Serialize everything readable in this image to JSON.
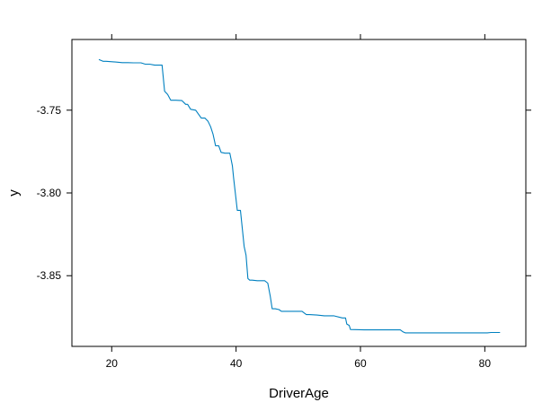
{
  "chart_data": {
    "type": "line",
    "title": "",
    "xlabel": "DriverAge",
    "ylabel": "y",
    "xlim": [
      13.6,
      86.6
    ],
    "ylim": [
      -3.8927,
      -3.7073
    ],
    "xticks": [
      20,
      40,
      60,
      80
    ],
    "xtick_labels": [
      "20",
      "40",
      "60",
      "80"
    ],
    "yticks": [
      -3.75,
      -3.8,
      -3.85
    ],
    "ytick_labels": [
      "-3.75",
      "-3.80",
      "-3.85"
    ],
    "grid": false,
    "legend": "none",
    "line_color": "#0080c0",
    "series": [
      {
        "x": [
          18,
          18.6,
          19.1,
          20.3,
          21.7,
          22.6,
          23.5,
          24.7,
          25.4,
          26.1,
          26.9,
          28.1,
          28.5,
          29.0,
          29.5,
          30.3,
          31.3,
          31.9,
          32.2,
          32.7,
          33.5,
          34.4,
          35.0,
          35.5,
          35.9,
          36.3,
          36.7,
          37.2,
          37.6,
          38.2,
          39.0,
          39.4,
          39.6,
          40.2,
          40.7,
          41.3,
          41.6,
          41.9,
          42.2,
          42.6,
          43.4,
          44.6,
          45.1,
          45.5,
          45.8,
          46.3,
          46.9,
          47.3,
          48.2,
          50.6,
          51.3,
          51.8,
          53.0,
          54.2,
          55.7,
          57.1,
          57.6,
          57.8,
          58.2,
          58.4,
          60.6,
          62.8,
          65.0,
          66.4,
          66.8,
          67.2,
          69.1,
          72.5,
          75.7,
          78.2,
          80.4,
          81.0,
          82.4
        ],
        "y": [
          -3.7195,
          -3.7205,
          -3.7205,
          -3.7208,
          -3.7213,
          -3.7213,
          -3.7214,
          -3.7214,
          -3.7222,
          -3.7222,
          -3.7228,
          -3.7228,
          -3.7385,
          -3.7405,
          -3.744,
          -3.744,
          -3.7442,
          -3.7465,
          -3.7465,
          -3.7495,
          -3.75,
          -3.7548,
          -3.7548,
          -3.7568,
          -3.76,
          -3.7645,
          -3.7715,
          -3.7715,
          -3.7755,
          -3.776,
          -3.776,
          -3.7835,
          -3.791,
          -3.8105,
          -3.8105,
          -3.8323,
          -3.8375,
          -3.8517,
          -3.8527,
          -3.8527,
          -3.853,
          -3.853,
          -3.8545,
          -3.8625,
          -3.87,
          -3.87,
          -3.8705,
          -3.8715,
          -3.8715,
          -3.8715,
          -3.8735,
          -3.8735,
          -3.8738,
          -3.8742,
          -3.8742,
          -3.8755,
          -3.8755,
          -3.8792,
          -3.88,
          -3.8825,
          -3.8827,
          -3.8827,
          -3.8827,
          -3.8827,
          -3.8838,
          -3.8845,
          -3.8845,
          -3.8845,
          -3.8845,
          -3.8845,
          -3.8845,
          -3.8843,
          -3.8843
        ]
      }
    ]
  }
}
